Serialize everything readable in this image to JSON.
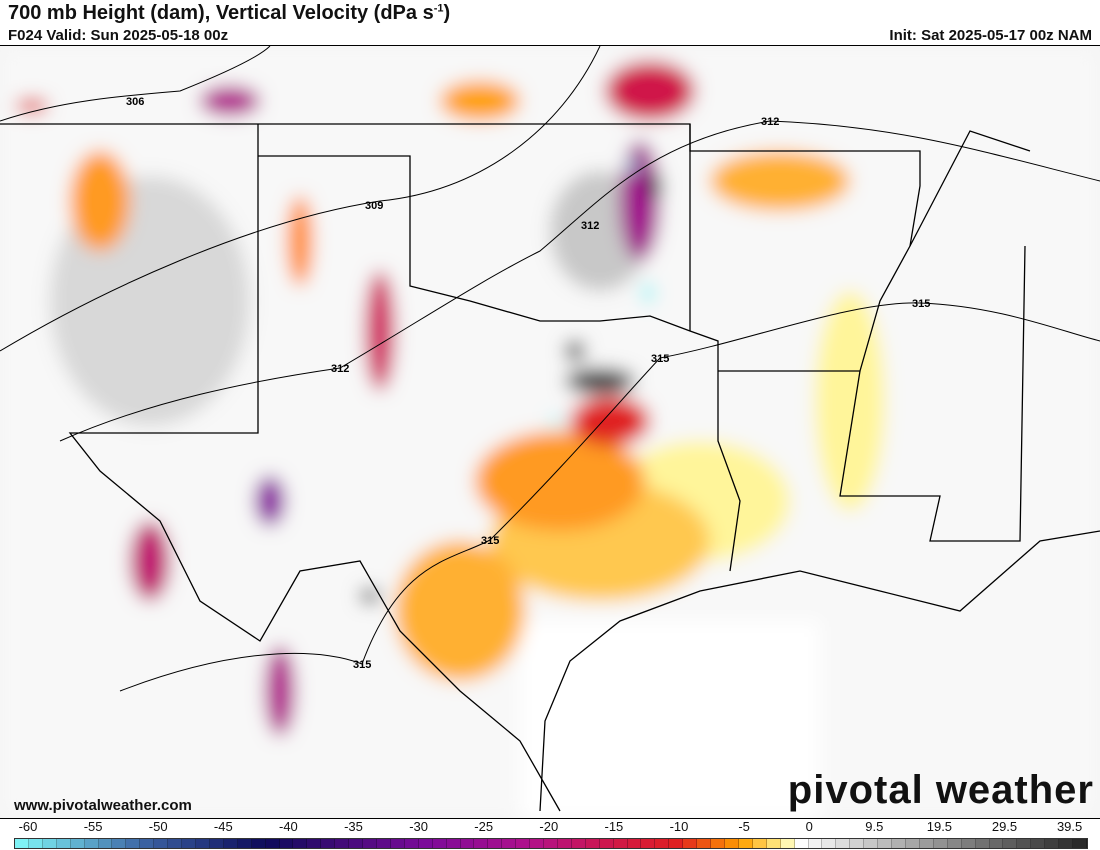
{
  "header": {
    "title": "700 mb Height (dam), Vertical Velocity (dPa s",
    "title_sup": "-1",
    "title_end": ")",
    "valid": "F024 Valid: Sun 2025-05-18 00z",
    "init": "Init: Sat 2025-05-17 00z NAM"
  },
  "footer": {
    "url": "www.pivotalweather.com",
    "logo": "pivotal weather"
  },
  "contour_labels": [
    "306",
    "309",
    "312",
    "312",
    "312",
    "315",
    "315",
    "315",
    "315"
  ],
  "colorbar": {
    "ticks": [
      "-60",
      "-55",
      "-50",
      "-45",
      "-40",
      "-35",
      "-30",
      "-25",
      "-20",
      "-15",
      "-10",
      "-5",
      "0",
      "9.5",
      "19.5",
      "29.5",
      "39.5"
    ],
    "colors": {
      "cyan": "#7ff3f6",
      "blue": "#3a5fa0",
      "navy": "#0d0a5a",
      "purple": "#7a0a9a",
      "magenta": "#b0108c",
      "crimson": "#d01848",
      "red": "#e02020",
      "orange": "#ffa000",
      "yellow": "#fff59a",
      "white": "#ffffff",
      "gray": "#a0a0a0",
      "dark": "#2a2a2a"
    }
  }
}
